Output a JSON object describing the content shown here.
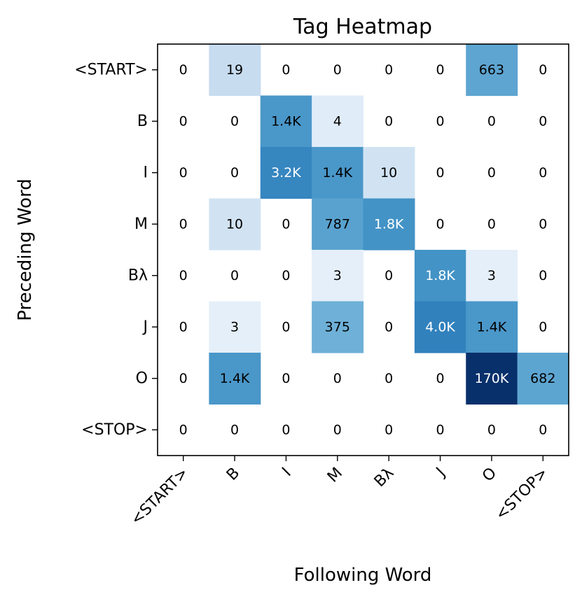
{
  "chart_data": {
    "type": "heatmap",
    "title": "Tag Heatmap",
    "xlabel": "Following Word",
    "ylabel": "Preceding Word",
    "x_categories": [
      "<START>",
      "B",
      "I",
      "M",
      "Bλ",
      "J",
      "O",
      "<STOP>"
    ],
    "y_categories": [
      "<START>",
      "B",
      "I",
      "M",
      "Bλ",
      "J",
      "O",
      "<STOP>"
    ],
    "values": [
      [
        0,
        19,
        0,
        0,
        0,
        0,
        663,
        0
      ],
      [
        0,
        0,
        1400,
        4,
        0,
        0,
        0,
        0
      ],
      [
        0,
        0,
        3200,
        1400,
        10,
        0,
        0,
        0
      ],
      [
        0,
        10,
        0,
        787,
        1800,
        0,
        0,
        0
      ],
      [
        0,
        0,
        0,
        3,
        0,
        1800,
        3,
        0
      ],
      [
        0,
        3,
        0,
        375,
        0,
        4000,
        1400,
        0
      ],
      [
        0,
        1400,
        0,
        0,
        0,
        0,
        170000,
        682
      ],
      [
        0,
        0,
        0,
        0,
        0,
        0,
        0,
        0
      ]
    ],
    "cell_labels": [
      [
        "0",
        "19",
        "0",
        "0",
        "0",
        "0",
        "663",
        "0"
      ],
      [
        "0",
        "0",
        "1.4K",
        "4",
        "0",
        "0",
        "0",
        "0"
      ],
      [
        "0",
        "0",
        "3.2K",
        "1.4K",
        "10",
        "0",
        "0",
        "0"
      ],
      [
        "0",
        "10",
        "0",
        "787",
        "1.8K",
        "0",
        "0",
        "0"
      ],
      [
        "0",
        "0",
        "0",
        "3",
        "0",
        "1.8K",
        "3",
        "0"
      ],
      [
        "0",
        "3",
        "0",
        "375",
        "0",
        "4.0K",
        "1.4K",
        "0"
      ],
      [
        "0",
        "1.4K",
        "0",
        "0",
        "0",
        "0",
        "170K",
        "682"
      ],
      [
        "0",
        "0",
        "0",
        "0",
        "0",
        "0",
        "0",
        "0"
      ]
    ],
    "colormap": "Blues",
    "color_scale": "log",
    "color_range": [
      1,
      170000
    ],
    "colors": {
      "low": "#f7fbff",
      "high": "#08306b"
    },
    "grid": false,
    "legend": "none"
  }
}
